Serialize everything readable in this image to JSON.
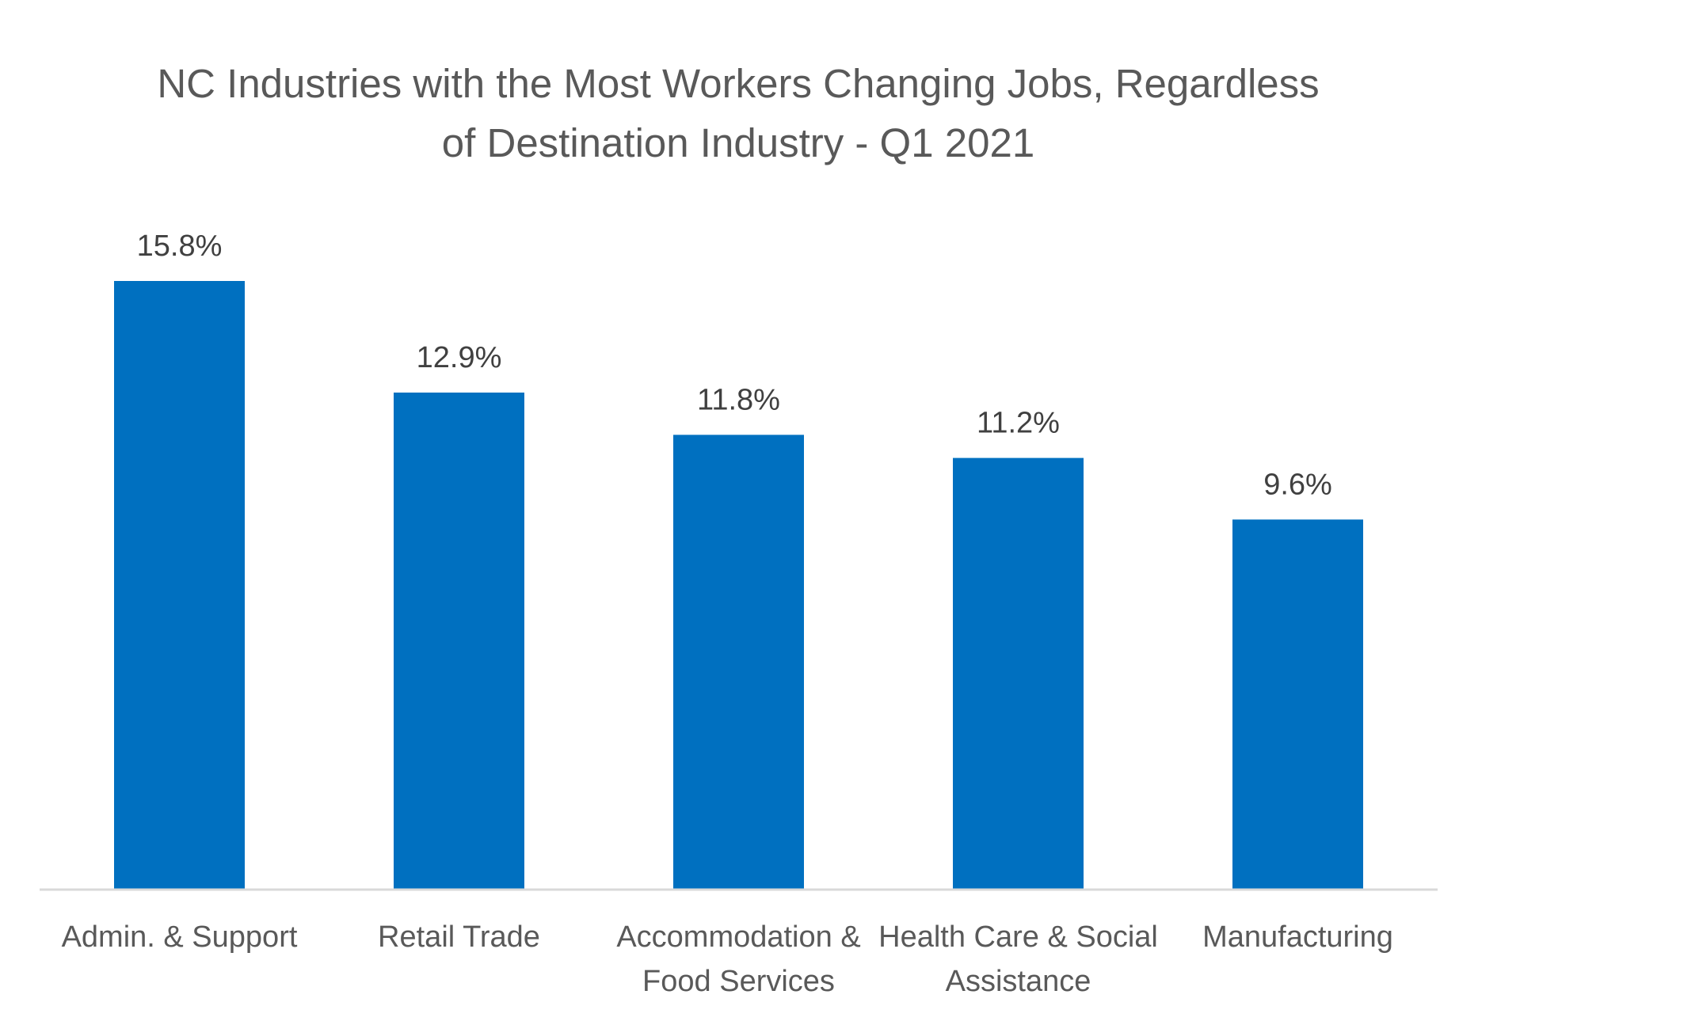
{
  "chart_data": {
    "type": "bar",
    "title": [
      "NC Industries with the Most Workers Changing Jobs, Regardless",
      "of Destination Industry - Q1 2021"
    ],
    "categories": [
      [
        "Admin. & Support"
      ],
      [
        "Retail Trade"
      ],
      [
        "Accommodation &",
        "Food Services"
      ],
      [
        "Health Care & Social",
        "Assistance"
      ],
      [
        "Manufacturing"
      ]
    ],
    "values": [
      15.8,
      12.9,
      11.8,
      11.2,
      9.6
    ],
    "data_labels": [
      "15.8%",
      "12.9%",
      "11.8%",
      "11.2%",
      "9.6%"
    ],
    "value_unit": "%",
    "ylim": [
      0,
      17
    ],
    "grid": false,
    "legend": "none",
    "bar_color": "#0070C0",
    "axis_color": "#D9D9D9"
  }
}
